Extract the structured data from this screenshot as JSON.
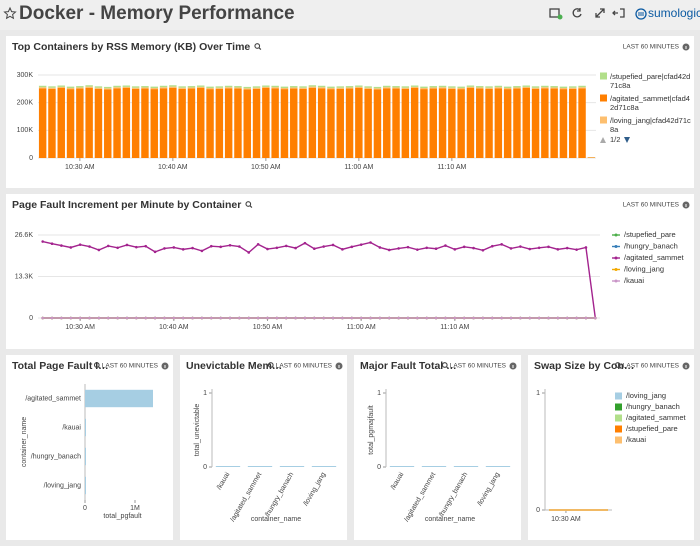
{
  "header": {
    "title": "Docker - Memory Performance",
    "logo": "sumologic"
  },
  "chart_data": [
    {
      "type": "bar",
      "title": "Top Containers by RSS Memory (KB) Over Time",
      "time_range": "LAST 60 MINUTES",
      "categories": [
        null,
        null,
        null,
        null,
        "10:30 AM",
        null,
        null,
        null,
        null,
        null,
        null,
        null,
        null,
        null,
        "10:40 AM",
        null,
        null,
        null,
        null,
        null,
        null,
        null,
        null,
        null,
        "10:50 AM",
        null,
        null,
        null,
        null,
        null,
        null,
        null,
        null,
        null,
        "11:00 AM",
        null,
        null,
        null,
        null,
        null,
        null,
        null,
        null,
        null,
        "11:10 AM",
        null,
        null,
        null,
        null,
        null,
        null,
        null,
        null,
        null,
        null,
        null,
        null,
        null,
        null,
        null
      ],
      "series": [
        {
          "name": "/agitated_sammet|cfad42d71c8a",
          "color": "#ff7f00",
          "values": [
            252000,
            250000,
            253000,
            249000,
            251000,
            254000,
            250000,
            248000,
            252000,
            253000,
            250000,
            251000,
            249000,
            252000,
            254000,
            250000,
            251000,
            253000,
            249000,
            250000,
            252000,
            251000,
            248000,
            250000,
            253000,
            252000,
            249000,
            251000,
            250000,
            254000,
            252000,
            249000,
            250000,
            251000,
            253000,
            250000,
            248000,
            252000,
            251000,
            250000,
            253000,
            249000,
            251000,
            252000,
            250000,
            249000,
            253000,
            251000,
            250000,
            252000,
            249000,
            251000,
            253000,
            250000,
            252000,
            251000,
            249000,
            250000,
            252000,
            2000
          ]
        },
        {
          "name": "/loving_jang|cfad42d71c8a",
          "color": "#fdbf6f",
          "values": [
            4000,
            4000,
            4000,
            4000,
            4000,
            4000,
            4000,
            4000,
            4000,
            4000,
            4000,
            4000,
            4000,
            4000,
            4000,
            4000,
            4000,
            4000,
            4000,
            4000,
            4000,
            4000,
            4000,
            4000,
            4000,
            4000,
            4000,
            4000,
            4000,
            4000,
            4000,
            4000,
            4000,
            4000,
            4000,
            4000,
            4000,
            4000,
            4000,
            4000,
            4000,
            4000,
            4000,
            4000,
            4000,
            4000,
            4000,
            4000,
            4000,
            4000,
            4000,
            4000,
            4000,
            4000,
            4000,
            4000,
            4000,
            4000,
            4000,
            500
          ]
        },
        {
          "name": "/stupefied_pare|cfad42d71c8a",
          "color": "#b2df8a",
          "values": [
            5000,
            5000,
            5000,
            5000,
            5000,
            5000,
            5000,
            5000,
            5000,
            5000,
            5000,
            5000,
            5000,
            5000,
            5000,
            5000,
            5000,
            5000,
            5000,
            5000,
            5000,
            5000,
            5000,
            5000,
            5000,
            5000,
            5000,
            5000,
            5000,
            5000,
            5000,
            5000,
            5000,
            5000,
            5000,
            5000,
            5000,
            5000,
            5000,
            5000,
            5000,
            5000,
            5000,
            5000,
            5000,
            5000,
            5000,
            5000,
            5000,
            5000,
            5000,
            5000,
            5000,
            5000,
            5000,
            5000,
            5000,
            5000,
            5000,
            500
          ]
        }
      ],
      "legend_order": [
        2,
        0,
        1
      ],
      "legend_page": "1/2",
      "ylim": [
        0,
        300000
      ],
      "yticks": [
        0,
        {
          "value": 100000,
          "label": "100K"
        },
        {
          "value": 200000,
          "label": "200K"
        },
        {
          "value": 300000,
          "label": "300K"
        }
      ],
      "grid": true
    },
    {
      "type": "line",
      "title": "Page Fault Increment per Minute by Container",
      "time_range": "LAST 60 MINUTES",
      "categories": [
        null,
        null,
        null,
        null,
        "10:30 AM",
        null,
        null,
        null,
        null,
        null,
        null,
        null,
        null,
        null,
        "10:40 AM",
        null,
        null,
        null,
        null,
        null,
        null,
        null,
        null,
        null,
        "10:50 AM",
        null,
        null,
        null,
        null,
        null,
        null,
        null,
        null,
        null,
        "11:00 AM",
        null,
        null,
        null,
        null,
        null,
        null,
        null,
        null,
        null,
        "11:10 AM",
        null,
        null,
        null,
        null,
        null,
        null,
        null,
        null,
        null,
        null,
        null,
        null,
        null,
        null,
        null
      ],
      "series": [
        {
          "name": "/stupefied_pare",
          "color": "#4daf4a",
          "values": [
            0,
            0,
            0,
            0,
            0,
            0,
            0,
            0,
            0,
            0,
            0,
            0,
            0,
            0,
            0,
            0,
            0,
            0,
            0,
            0,
            0,
            0,
            0,
            0,
            0,
            0,
            0,
            0,
            0,
            0,
            0,
            0,
            0,
            0,
            0,
            0,
            0,
            0,
            0,
            0,
            0,
            0,
            0,
            0,
            0,
            0,
            0,
            0,
            0,
            0,
            0,
            0,
            0,
            0,
            0,
            0,
            0,
            0,
            0,
            0
          ]
        },
        {
          "name": "/hungry_banach",
          "color": "#377eb8",
          "values": [
            0,
            0,
            0,
            0,
            0,
            0,
            0,
            0,
            0,
            0,
            0,
            0,
            0,
            0,
            0,
            0,
            0,
            0,
            0,
            0,
            0,
            0,
            0,
            0,
            0,
            0,
            0,
            0,
            0,
            0,
            0,
            0,
            0,
            0,
            0,
            0,
            0,
            0,
            0,
            0,
            0,
            0,
            0,
            0,
            0,
            0,
            0,
            0,
            0,
            0,
            0,
            0,
            0,
            0,
            0,
            0,
            0,
            0,
            0,
            0
          ]
        },
        {
          "name": "/agitated_sammet",
          "color": "#a3238e",
          "values": [
            24500,
            23800,
            23200,
            22600,
            23500,
            22900,
            21800,
            23100,
            22500,
            23400,
            22700,
            23000,
            21200,
            22300,
            22600,
            22000,
            22400,
            21500,
            23000,
            22800,
            23300,
            22900,
            21000,
            23600,
            22100,
            22500,
            23100,
            22400,
            24000,
            22200,
            22900,
            23400,
            22000,
            22800,
            23500,
            24200,
            22600,
            21800,
            22300,
            22700,
            21900,
            22500,
            22200,
            23200,
            22000,
            22800,
            22400,
            21700,
            23000,
            23600,
            22300,
            22900,
            22100,
            22500,
            22800,
            22000,
            22400,
            21900,
            22600,
            0
          ]
        },
        {
          "name": "/loving_jang",
          "color": "#f2a900",
          "values": [
            0,
            0,
            0,
            0,
            0,
            0,
            0,
            0,
            0,
            0,
            0,
            0,
            0,
            0,
            0,
            0,
            0,
            0,
            0,
            0,
            0,
            0,
            0,
            0,
            0,
            0,
            0,
            0,
            0,
            0,
            0,
            0,
            0,
            0,
            0,
            0,
            0,
            0,
            0,
            0,
            0,
            0,
            0,
            0,
            0,
            0,
            0,
            0,
            0,
            0,
            0,
            0,
            0,
            0,
            0,
            0,
            0,
            0,
            0,
            0
          ]
        },
        {
          "name": "/kauai",
          "color": "#c994c7",
          "values": [
            0,
            0,
            0,
            0,
            0,
            0,
            0,
            0,
            0,
            0,
            0,
            0,
            0,
            0,
            0,
            0,
            0,
            0,
            0,
            0,
            0,
            0,
            0,
            0,
            0,
            0,
            0,
            0,
            0,
            0,
            0,
            0,
            0,
            0,
            0,
            0,
            0,
            0,
            0,
            0,
            0,
            0,
            0,
            0,
            0,
            0,
            0,
            0,
            0,
            0,
            0,
            0,
            0,
            0,
            0,
            0,
            0,
            0,
            0,
            0
          ]
        }
      ],
      "ylim": [
        0,
        26600
      ],
      "yticks": [
        0,
        {
          "value": 13300,
          "label": "13.3K"
        },
        {
          "value": 26600,
          "label": "26.6K"
        }
      ],
      "grid": true
    },
    {
      "type": "hbar",
      "title": "Total Page Fault I…",
      "time_range": "LAST 60 MINUTES",
      "categories": [
        "/agitated_sammet",
        "/kauai",
        "/hungry_banach",
        "/loving_jang"
      ],
      "values": [
        1340000,
        0,
        0,
        0
      ],
      "color": "#a6cee3",
      "xlim": [
        0,
        1500000
      ],
      "xticks": [
        0,
        {
          "value": 1000000,
          "label": "1M"
        }
      ],
      "xlabel": "total_pgfault",
      "ylabel": "container_name"
    },
    {
      "type": "bar",
      "title": "Unevictable Mem…",
      "time_range": "LAST 60 MINUTES",
      "categories": [
        "/kauai",
        "/agitated_sammet",
        "/hungry_banach",
        "/loving_jang"
      ],
      "values": [
        0,
        0,
        0,
        0
      ],
      "color": "#a6cee3",
      "ylim": [
        0,
        1
      ],
      "yticks": [
        0,
        1
      ],
      "xlabel": "container_name",
      "ylabel": "total_unevictable"
    },
    {
      "type": "bar",
      "title": "Major Fault Total …",
      "time_range": "LAST 60 MINUTES",
      "categories": [
        "/kauai",
        "/agitated_sammet",
        "/hungry_banach",
        "/loving_jang"
      ],
      "values": [
        0,
        0,
        0,
        0
      ],
      "color": "#a6cee3",
      "ylim": [
        0,
        1
      ],
      "yticks": [
        0,
        1
      ],
      "xlabel": "container_name",
      "ylabel": "total_pgmajfault"
    },
    {
      "type": "line",
      "title": "Swap Size by Con…",
      "time_range": "LAST 60 MINUTES",
      "categories": [
        null,
        null,
        "10:30 AM",
        null,
        null,
        null,
        null,
        null
      ],
      "series": [
        {
          "name": "/loving_jang",
          "color": "#a6cee3",
          "values": [
            0,
            0,
            0,
            0,
            0,
            0,
            0,
            0
          ]
        },
        {
          "name": "/hungry_banach",
          "color": "#33a02c",
          "values": [
            0,
            0,
            0,
            0,
            0,
            0,
            0,
            0
          ]
        },
        {
          "name": "/agitated_sammet",
          "color": "#b2df8a",
          "values": [
            0,
            0,
            0,
            0,
            0,
            0,
            0,
            0
          ]
        },
        {
          "name": "/stupefied_pare",
          "color": "#ff7f00",
          "values": [
            0,
            0,
            0,
            0,
            0,
            0,
            0,
            0
          ]
        },
        {
          "name": "/kauai",
          "color": "#fdbf6f",
          "values": [
            0,
            0,
            0,
            0,
            0,
            0,
            0,
            0
          ]
        }
      ],
      "ylim": [
        0,
        1
      ],
      "yticks": [
        0,
        1
      ]
    }
  ]
}
